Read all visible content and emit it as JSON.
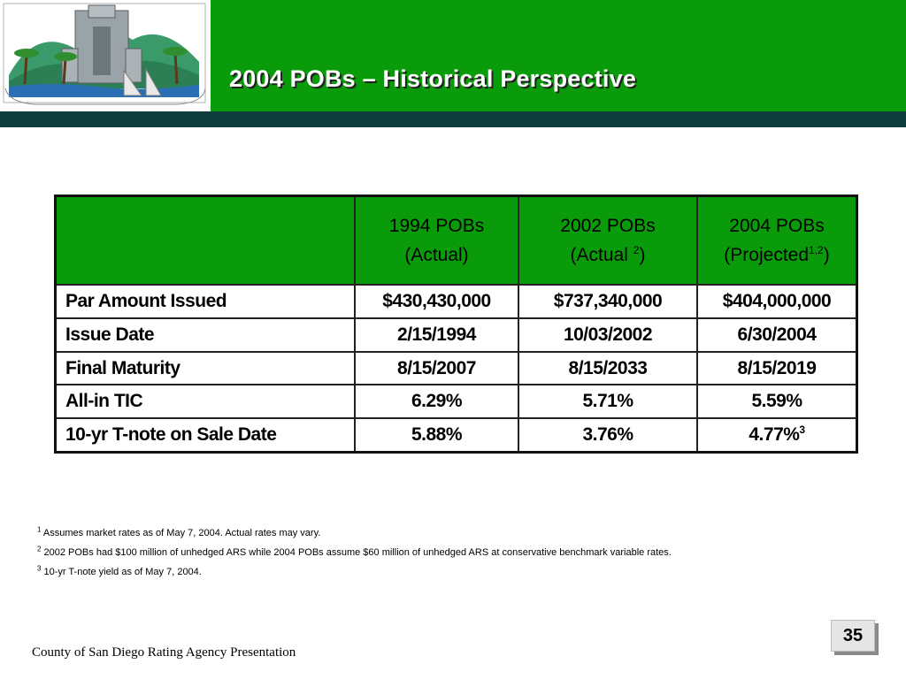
{
  "slide": {
    "title": "2004 POBs – Historical Perspective",
    "footer": "County of San Diego Rating Agency Presentation",
    "page_number": "35"
  },
  "table": {
    "headers": [
      {
        "line1": "1994 POBs",
        "line2": "(Actual)",
        "sup": "",
        "tail": ""
      },
      {
        "line1": "2002 POBs",
        "line2": "(Actual ",
        "sup": "2",
        "tail": ")"
      },
      {
        "line1": "2004 POBs",
        "line2": "(Projected",
        "sup": "1,2",
        "tail": ")"
      }
    ],
    "rows": [
      {
        "label": "Par Amount Issued",
        "values": [
          "$430,430,000",
          "$737,340,000",
          "$404,000,000"
        ]
      },
      {
        "label": "Issue Date",
        "values": [
          "2/15/1994",
          "10/03/2002",
          "6/30/2004"
        ]
      },
      {
        "label": "Final Maturity",
        "values": [
          "8/15/2007",
          "8/15/2033",
          "8/15/2019"
        ]
      },
      {
        "label": "All-in TIC",
        "values": [
          "6.29%",
          "5.71%",
          "5.59%"
        ]
      },
      {
        "label": "10-yr T-note on Sale Date",
        "values": [
          "5.88%",
          "3.76%",
          "4.77%"
        ],
        "last_sup": "3"
      }
    ]
  },
  "footnotes": [
    {
      "num": "1",
      "text": "Assumes market rates as of May 7, 2004. Actual rates may vary."
    },
    {
      "num": "2",
      "text": "2002 POBs had $100 million of unhedged ARS while 2004 POBs assume $60 million of unhedged ARS at conservative benchmark variable rates."
    },
    {
      "num": "3",
      "text": "10-yr T-note yield as of May 7, 2004."
    }
  ],
  "colors": {
    "header_green": "#0a9b0a",
    "stripe_teal": "#0d3d3d"
  },
  "icons": {
    "logo": "county-of-san-diego-logo"
  }
}
